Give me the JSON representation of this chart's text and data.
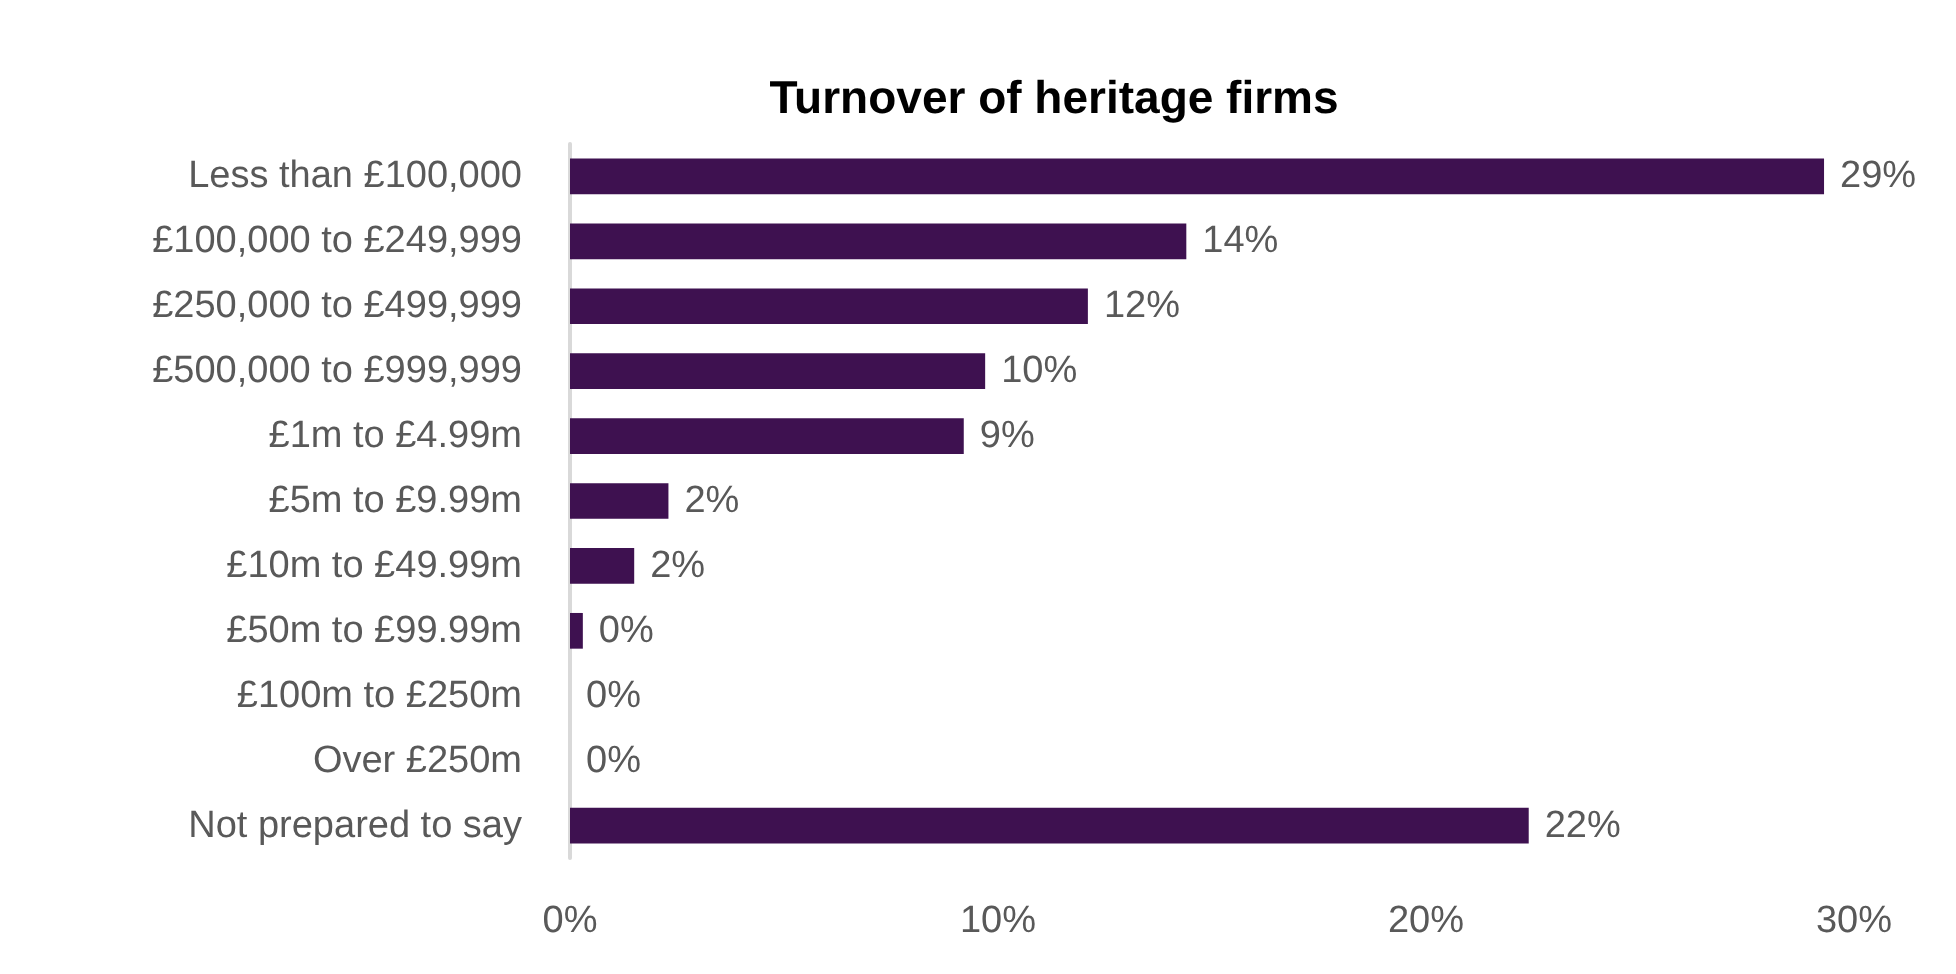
{
  "chart_data": {
    "type": "bar",
    "orientation": "horizontal",
    "title": "Turnover of heritage firms",
    "categories": [
      "Less than £100,000",
      "£100,000 to £249,999",
      "£250,000 to £499,999",
      "£500,000 to £999,999",
      "£1m to £4.99m",
      "£5m to £9.99m",
      "£10m to £49.99m",
      "£50m to £99.99m",
      "£100m to £250m",
      "Over £250m",
      "Not prepared to say"
    ],
    "values": [
      29.3,
      14.4,
      12.1,
      9.7,
      9.2,
      2.3,
      1.5,
      0.3,
      0,
      0,
      22.4
    ],
    "value_labels": [
      "29%",
      "14%",
      "12%",
      "10%",
      "9%",
      "2%",
      "2%",
      "0%",
      "0%",
      "0%",
      "22%"
    ],
    "color": "#3e1150",
    "xlim": [
      0,
      30
    ],
    "xticks": [
      {
        "value": 0,
        "label": "0%"
      },
      {
        "value": 10,
        "label": "10%"
      },
      {
        "value": 20,
        "label": "20%"
      },
      {
        "value": 30,
        "label": "30%"
      }
    ]
  }
}
